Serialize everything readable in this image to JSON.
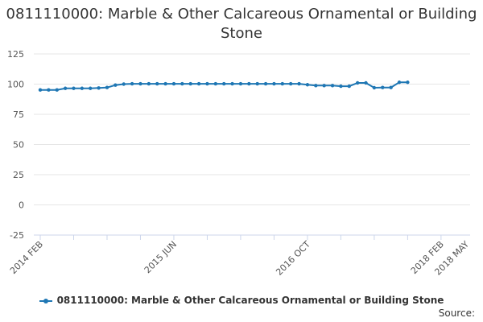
{
  "colors": {
    "series": "#1f77b4",
    "grid": "#e6e6e6",
    "axis": "#ccd6eb"
  },
  "footer": {
    "source_label": "Source:"
  },
  "chart_data": {
    "type": "line",
    "title": "0811110000: Marble & Other Calcareous Ornamental or Building Stone",
    "xlabel": "",
    "ylabel": "",
    "ylim": [
      -25,
      125
    ],
    "yticks": [
      125,
      100,
      75,
      50,
      25,
      0,
      -25
    ],
    "xlim": [
      "2014-02",
      "2018-05"
    ],
    "xticks": [
      "2014 FEB",
      "2015 JUN",
      "2016 OCT",
      "2018 FEB",
      "2018 MAY"
    ],
    "grid": true,
    "legend": "bottom-center",
    "series": [
      {
        "name": "0811110000: Marble & Other Calcareous Ornamental or Building Stone",
        "x": [
          "2014-02",
          "2014-03",
          "2014-04",
          "2014-05",
          "2014-06",
          "2014-07",
          "2014-08",
          "2014-09",
          "2014-10",
          "2014-11",
          "2014-12",
          "2015-01",
          "2015-02",
          "2015-03",
          "2015-04",
          "2015-05",
          "2015-06",
          "2015-07",
          "2015-08",
          "2015-09",
          "2015-10",
          "2015-11",
          "2015-12",
          "2016-01",
          "2016-02",
          "2016-03",
          "2016-04",
          "2016-05",
          "2016-06",
          "2016-07",
          "2016-08",
          "2016-09",
          "2016-10",
          "2016-11",
          "2016-12",
          "2017-01",
          "2017-02",
          "2017-03",
          "2017-04",
          "2017-05",
          "2017-06",
          "2017-07",
          "2017-08",
          "2017-09",
          "2017-10"
        ],
        "values": [
          95.2,
          95.2,
          95.2,
          96.5,
          96.5,
          96.5,
          96.5,
          96.8,
          97.2,
          99.2,
          100,
          100.3,
          100.3,
          100.3,
          100.3,
          100.3,
          100.3,
          100.3,
          100.3,
          100.3,
          100.3,
          100.3,
          100.3,
          100.3,
          100.3,
          100.3,
          100.3,
          100.3,
          100.3,
          100.3,
          100.3,
          100.3,
          99.5,
          98.8,
          98.8,
          98.8,
          98.3,
          98.3,
          101,
          101,
          97,
          97.2,
          97.2,
          101.5,
          101.5
        ]
      }
    ]
  }
}
